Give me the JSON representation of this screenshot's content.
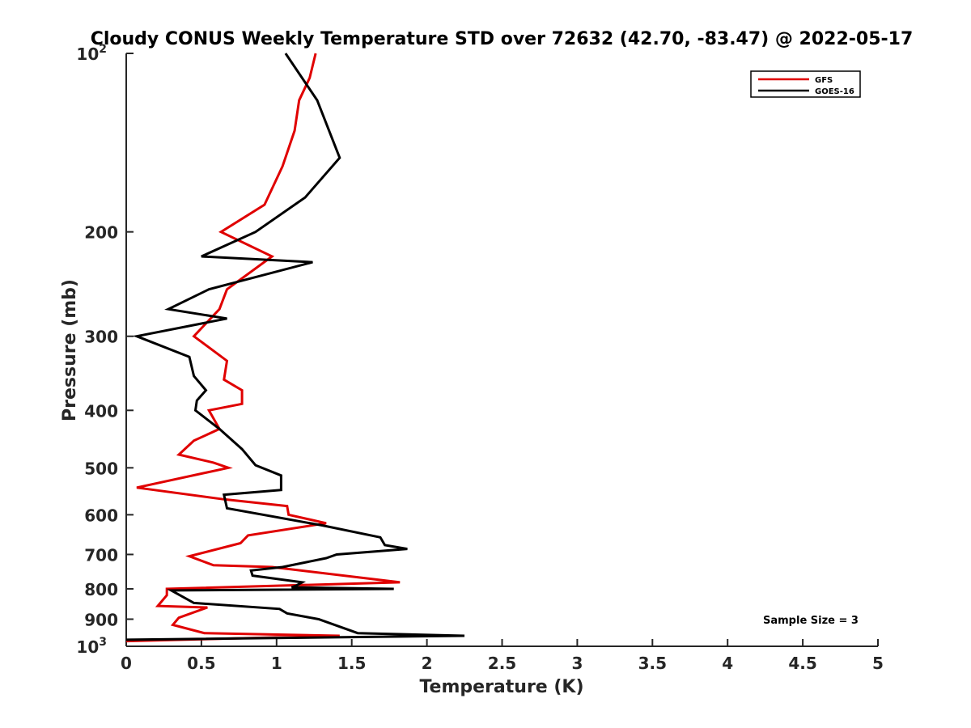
{
  "chart_data": {
    "type": "line",
    "title": "Cloudy CONUS Weekly Temperature STD over 72632 (42.70, -83.47) @ 2022-05-17",
    "xlabel": "Temperature (K)",
    "ylabel": "Pressure (mb)",
    "xlim": [
      0,
      5
    ],
    "ylim": [
      100,
      1000
    ],
    "y_scale": "log",
    "y_direction": "reversed",
    "x_ticks": [
      "0",
      "0.5",
      "1",
      "1.5",
      "2",
      "2.5",
      "3",
      "3.5",
      "4",
      "4.5",
      "5"
    ],
    "y_ticks": [
      {
        "value": 100,
        "label": "10",
        "sup": "2"
      },
      {
        "value": 200,
        "label": "200"
      },
      {
        "value": 300,
        "label": "300"
      },
      {
        "value": 400,
        "label": "400"
      },
      {
        "value": 500,
        "label": "500"
      },
      {
        "value": 600,
        "label": "600"
      },
      {
        "value": 700,
        "label": "700"
      },
      {
        "value": 800,
        "label": "800"
      },
      {
        "value": 900,
        "label": "900"
      },
      {
        "value": 1000,
        "label": "10",
        "sup": "3"
      }
    ],
    "grid": false,
    "legend_position": "top-right",
    "annotation": "Sample Size = 3",
    "series": [
      {
        "name": "GFS",
        "color": "#e00000",
        "points": [
          [
            1.26,
            100
          ],
          [
            1.22,
            110
          ],
          [
            1.15,
            120
          ],
          [
            1.12,
            135
          ],
          [
            1.04,
            155
          ],
          [
            0.92,
            180
          ],
          [
            0.63,
            200
          ],
          [
            0.97,
            220
          ],
          [
            0.67,
            250
          ],
          [
            0.62,
            270
          ],
          [
            0.45,
            300
          ],
          [
            0.67,
            330
          ],
          [
            0.65,
            355
          ],
          [
            0.77,
            370
          ],
          [
            0.77,
            390
          ],
          [
            0.55,
            400
          ],
          [
            0.62,
            430
          ],
          [
            0.45,
            450
          ],
          [
            0.35,
            475
          ],
          [
            0.58,
            490
          ],
          [
            0.68,
            500
          ],
          [
            0.07,
            540
          ],
          [
            0.65,
            565
          ],
          [
            1.07,
            580
          ],
          [
            1.08,
            600
          ],
          [
            1.33,
            620
          ],
          [
            0.81,
            650
          ],
          [
            0.76,
            670
          ],
          [
            0.42,
            705
          ],
          [
            0.58,
            730
          ],
          [
            0.97,
            735
          ],
          [
            1.82,
            780
          ],
          [
            0.27,
            800
          ],
          [
            0.27,
            820
          ],
          [
            0.21,
            855
          ],
          [
            0.54,
            860
          ],
          [
            0.35,
            895
          ],
          [
            0.31,
            920
          ],
          [
            0.52,
            950
          ],
          [
            1.42,
            960
          ],
          [
            0.0,
            980
          ]
        ]
      },
      {
        "name": "GOES-16",
        "color": "#000000",
        "points": [
          [
            1.06,
            100
          ],
          [
            1.27,
            120
          ],
          [
            1.42,
            150
          ],
          [
            1.19,
            175
          ],
          [
            0.86,
            200
          ],
          [
            0.5,
            220
          ],
          [
            1.24,
            225
          ],
          [
            0.55,
            250
          ],
          [
            0.28,
            270
          ],
          [
            0.67,
            280
          ],
          [
            0.07,
            300
          ],
          [
            0.42,
            325
          ],
          [
            0.45,
            350
          ],
          [
            0.53,
            370
          ],
          [
            0.47,
            385
          ],
          [
            0.46,
            400
          ],
          [
            0.62,
            430
          ],
          [
            0.77,
            465
          ],
          [
            0.86,
            495
          ],
          [
            1.03,
            515
          ],
          [
            1.03,
            545
          ],
          [
            0.65,
            555
          ],
          [
            0.67,
            585
          ],
          [
            1.3,
            625
          ],
          [
            1.69,
            655
          ],
          [
            1.72,
            675
          ],
          [
            1.87,
            685
          ],
          [
            1.4,
            700
          ],
          [
            1.33,
            710
          ],
          [
            1.04,
            735
          ],
          [
            0.83,
            745
          ],
          [
            0.84,
            760
          ],
          [
            1.17,
            780
          ],
          [
            1.13,
            790
          ],
          [
            1.1,
            795
          ],
          [
            1.78,
            800
          ],
          [
            0.3,
            805
          ],
          [
            0.45,
            845
          ],
          [
            1.02,
            865
          ],
          [
            1.07,
            880
          ],
          [
            1.28,
            900
          ],
          [
            1.54,
            950
          ],
          [
            2.25,
            960
          ],
          [
            0.0,
            975
          ]
        ]
      }
    ]
  }
}
